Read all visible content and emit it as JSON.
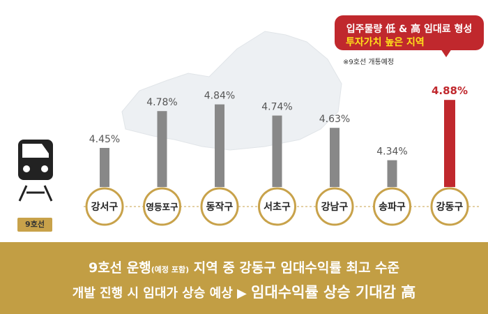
{
  "chart_data": {
    "type": "bar",
    "categories": [
      "강서구",
      "영등포구",
      "동작구",
      "서초구",
      "강남구",
      "송파구",
      "강동구"
    ],
    "values": [
      4.45,
      4.78,
      4.84,
      4.74,
      4.63,
      4.34,
      4.88
    ],
    "value_labels": [
      "4.45%",
      "4.78%",
      "4.84%",
      "4.74%",
      "4.63%",
      "4.34%",
      "4.88%"
    ],
    "highlight": "강동구",
    "colors": {
      "bar": "#888888",
      "highlight_bar": "#c0282d",
      "circle_border": "#c8a24a",
      "value_text": "#555555"
    }
  },
  "callout": {
    "line1": "입주물량 低 & 高 임대료 형성",
    "line2": "투자가치 높은 지역",
    "note": "※9호선 개통예정"
  },
  "line_badge": "9호선",
  "train_icon": "subway-train-icon",
  "footer": {
    "line1_a": "9호선 운행",
    "line1_small": "(예정 포함)",
    "line1_b": " 지역 중 강동구 임대수익률 최고 수준",
    "line2_a": "개발 진행 시 임대가 상승 예상 ▶ ",
    "line2_b": "임대수익률 상승 기대감 高",
    "color": "#c29e44"
  }
}
